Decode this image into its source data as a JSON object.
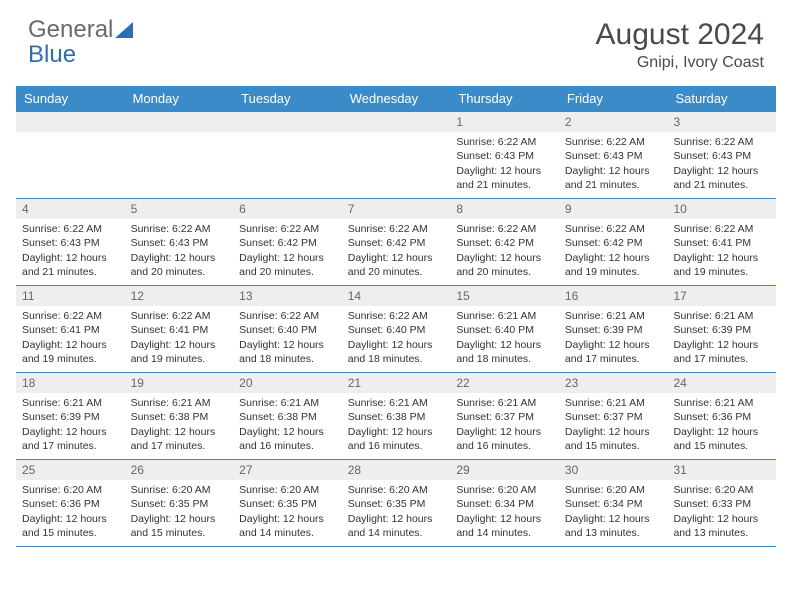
{
  "brand": {
    "textA": "General",
    "textB": "Blue"
  },
  "title": "August 2024",
  "location": "Gnipi, Ivory Coast",
  "colors": {
    "header_bg": "#3b8bc9",
    "header_text": "#ffffff",
    "border": "#3b8bc9",
    "daynum_bg": "#eeeeee",
    "text": "#333333",
    "brand_gray": "#6a6a6a",
    "brand_blue": "#2f6fb0"
  },
  "dayHeaders": [
    "Sunday",
    "Monday",
    "Tuesday",
    "Wednesday",
    "Thursday",
    "Friday",
    "Saturday"
  ],
  "weeks": [
    [
      {
        "n": "",
        "lines": []
      },
      {
        "n": "",
        "lines": []
      },
      {
        "n": "",
        "lines": []
      },
      {
        "n": "",
        "lines": []
      },
      {
        "n": "1",
        "lines": [
          "Sunrise: 6:22 AM",
          "Sunset: 6:43 PM",
          "Daylight: 12 hours and 21 minutes."
        ]
      },
      {
        "n": "2",
        "lines": [
          "Sunrise: 6:22 AM",
          "Sunset: 6:43 PM",
          "Daylight: 12 hours and 21 minutes."
        ]
      },
      {
        "n": "3",
        "lines": [
          "Sunrise: 6:22 AM",
          "Sunset: 6:43 PM",
          "Daylight: 12 hours and 21 minutes."
        ]
      }
    ],
    [
      {
        "n": "4",
        "lines": [
          "Sunrise: 6:22 AM",
          "Sunset: 6:43 PM",
          "Daylight: 12 hours and 21 minutes."
        ]
      },
      {
        "n": "5",
        "lines": [
          "Sunrise: 6:22 AM",
          "Sunset: 6:43 PM",
          "Daylight: 12 hours and 20 minutes."
        ]
      },
      {
        "n": "6",
        "lines": [
          "Sunrise: 6:22 AM",
          "Sunset: 6:42 PM",
          "Daylight: 12 hours and 20 minutes."
        ]
      },
      {
        "n": "7",
        "lines": [
          "Sunrise: 6:22 AM",
          "Sunset: 6:42 PM",
          "Daylight: 12 hours and 20 minutes."
        ]
      },
      {
        "n": "8",
        "lines": [
          "Sunrise: 6:22 AM",
          "Sunset: 6:42 PM",
          "Daylight: 12 hours and 20 minutes."
        ]
      },
      {
        "n": "9",
        "lines": [
          "Sunrise: 6:22 AM",
          "Sunset: 6:42 PM",
          "Daylight: 12 hours and 19 minutes."
        ]
      },
      {
        "n": "10",
        "lines": [
          "Sunrise: 6:22 AM",
          "Sunset: 6:41 PM",
          "Daylight: 12 hours and 19 minutes."
        ]
      }
    ],
    [
      {
        "n": "11",
        "lines": [
          "Sunrise: 6:22 AM",
          "Sunset: 6:41 PM",
          "Daylight: 12 hours and 19 minutes."
        ]
      },
      {
        "n": "12",
        "lines": [
          "Sunrise: 6:22 AM",
          "Sunset: 6:41 PM",
          "Daylight: 12 hours and 19 minutes."
        ]
      },
      {
        "n": "13",
        "lines": [
          "Sunrise: 6:22 AM",
          "Sunset: 6:40 PM",
          "Daylight: 12 hours and 18 minutes."
        ]
      },
      {
        "n": "14",
        "lines": [
          "Sunrise: 6:22 AM",
          "Sunset: 6:40 PM",
          "Daylight: 12 hours and 18 minutes."
        ]
      },
      {
        "n": "15",
        "lines": [
          "Sunrise: 6:21 AM",
          "Sunset: 6:40 PM",
          "Daylight: 12 hours and 18 minutes."
        ]
      },
      {
        "n": "16",
        "lines": [
          "Sunrise: 6:21 AM",
          "Sunset: 6:39 PM",
          "Daylight: 12 hours and 17 minutes."
        ]
      },
      {
        "n": "17",
        "lines": [
          "Sunrise: 6:21 AM",
          "Sunset: 6:39 PM",
          "Daylight: 12 hours and 17 minutes."
        ]
      }
    ],
    [
      {
        "n": "18",
        "lines": [
          "Sunrise: 6:21 AM",
          "Sunset: 6:39 PM",
          "Daylight: 12 hours and 17 minutes."
        ]
      },
      {
        "n": "19",
        "lines": [
          "Sunrise: 6:21 AM",
          "Sunset: 6:38 PM",
          "Daylight: 12 hours and 17 minutes."
        ]
      },
      {
        "n": "20",
        "lines": [
          "Sunrise: 6:21 AM",
          "Sunset: 6:38 PM",
          "Daylight: 12 hours and 16 minutes."
        ]
      },
      {
        "n": "21",
        "lines": [
          "Sunrise: 6:21 AM",
          "Sunset: 6:38 PM",
          "Daylight: 12 hours and 16 minutes."
        ]
      },
      {
        "n": "22",
        "lines": [
          "Sunrise: 6:21 AM",
          "Sunset: 6:37 PM",
          "Daylight: 12 hours and 16 minutes."
        ]
      },
      {
        "n": "23",
        "lines": [
          "Sunrise: 6:21 AM",
          "Sunset: 6:37 PM",
          "Daylight: 12 hours and 15 minutes."
        ]
      },
      {
        "n": "24",
        "lines": [
          "Sunrise: 6:21 AM",
          "Sunset: 6:36 PM",
          "Daylight: 12 hours and 15 minutes."
        ]
      }
    ],
    [
      {
        "n": "25",
        "lines": [
          "Sunrise: 6:20 AM",
          "Sunset: 6:36 PM",
          "Daylight: 12 hours and 15 minutes."
        ]
      },
      {
        "n": "26",
        "lines": [
          "Sunrise: 6:20 AM",
          "Sunset: 6:35 PM",
          "Daylight: 12 hours and 15 minutes."
        ]
      },
      {
        "n": "27",
        "lines": [
          "Sunrise: 6:20 AM",
          "Sunset: 6:35 PM",
          "Daylight: 12 hours and 14 minutes."
        ]
      },
      {
        "n": "28",
        "lines": [
          "Sunrise: 6:20 AM",
          "Sunset: 6:35 PM",
          "Daylight: 12 hours and 14 minutes."
        ]
      },
      {
        "n": "29",
        "lines": [
          "Sunrise: 6:20 AM",
          "Sunset: 6:34 PM",
          "Daylight: 12 hours and 14 minutes."
        ]
      },
      {
        "n": "30",
        "lines": [
          "Sunrise: 6:20 AM",
          "Sunset: 6:34 PM",
          "Daylight: 12 hours and 13 minutes."
        ]
      },
      {
        "n": "31",
        "lines": [
          "Sunrise: 6:20 AM",
          "Sunset: 6:33 PM",
          "Daylight: 12 hours and 13 minutes."
        ]
      }
    ]
  ]
}
